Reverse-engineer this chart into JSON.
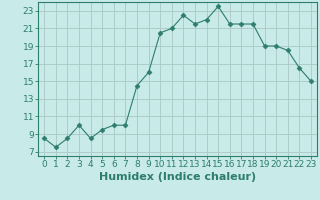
{
  "x": [
    0,
    1,
    2,
    3,
    4,
    5,
    6,
    7,
    8,
    9,
    10,
    11,
    12,
    13,
    14,
    15,
    16,
    17,
    18,
    19,
    20,
    21,
    22,
    23
  ],
  "y": [
    8.5,
    7.5,
    8.5,
    10.0,
    8.5,
    9.5,
    10.0,
    10.0,
    14.5,
    16.0,
    20.5,
    21.0,
    22.5,
    21.5,
    22.0,
    23.5,
    21.5,
    21.5,
    21.5,
    19.0,
    19.0,
    18.5,
    16.5,
    15.0
  ],
  "xlabel": "Humidex (Indice chaleur)",
  "ylim": [
    6.5,
    24
  ],
  "xlim": [
    -0.5,
    23.5
  ],
  "yticks": [
    7,
    9,
    11,
    13,
    15,
    17,
    19,
    21,
    23
  ],
  "xticks": [
    0,
    1,
    2,
    3,
    4,
    5,
    6,
    7,
    8,
    9,
    10,
    11,
    12,
    13,
    14,
    15,
    16,
    17,
    18,
    19,
    20,
    21,
    22,
    23
  ],
  "line_color": "#2e7d6e",
  "marker": "D",
  "marker_size": 2.5,
  "bg_color": "#c8eae8",
  "grid_color": "#aac8c4",
  "tick_label_fontsize": 6.5,
  "xlabel_fontsize": 8
}
